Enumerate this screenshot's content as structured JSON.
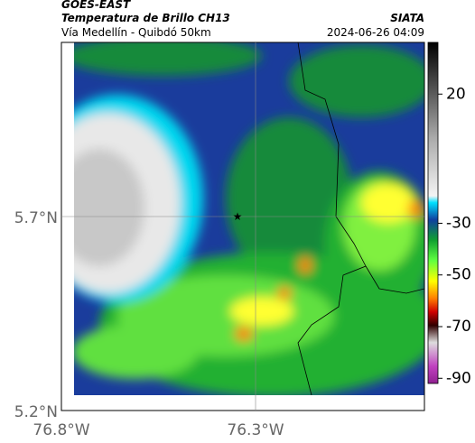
{
  "header": {
    "product": "GOES-EAST",
    "title": "Temperatura de Brillo CH13",
    "subtitle": "Vía Medellín - Quibdó 50km",
    "source": "SIATA",
    "timestamp": "2024-06-26 04:09"
  },
  "map": {
    "lat_labels": [
      "5.7°N",
      "5.2°N"
    ],
    "lon_labels": [
      "76.8°W",
      "76.3°W"
    ]
  },
  "colorbar": {
    "range": [
      -92,
      40
    ],
    "ticks": [
      20,
      -30,
      -50,
      -70,
      -90
    ]
  }
}
